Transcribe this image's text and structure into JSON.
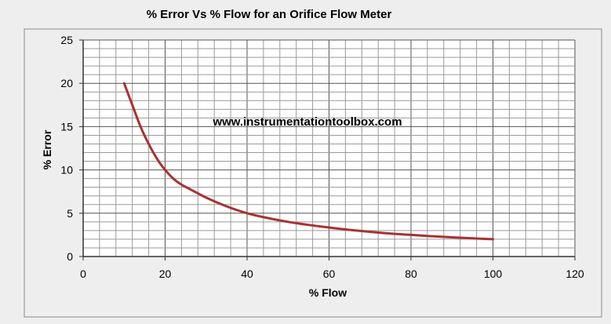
{
  "chart_data": {
    "type": "line",
    "title": "% Error Vs % Flow for an Orifice Flow Meter",
    "xlabel": "% Flow",
    "ylabel": "% Error",
    "watermark": "www.instrumentationtoolbox.com",
    "xlim": [
      0,
      120
    ],
    "ylim": [
      0,
      25
    ],
    "x_major_ticks": [
      0,
      20,
      40,
      60,
      80,
      100,
      120
    ],
    "y_major_ticks": [
      0,
      5,
      10,
      15,
      20,
      25
    ],
    "x_minor_step": 4,
    "y_minor_step": 1,
    "grid": true,
    "series": [
      {
        "color": "#a83232",
        "points": [
          [
            10,
            20.0
          ],
          [
            12,
            17.5
          ],
          [
            14,
            15.0
          ],
          [
            16,
            13.0
          ],
          [
            18,
            11.3
          ],
          [
            20,
            10.0
          ],
          [
            22,
            9.0
          ],
          [
            24,
            8.3
          ],
          [
            26,
            7.8
          ],
          [
            28,
            7.3
          ],
          [
            30,
            6.8
          ],
          [
            35,
            5.8
          ],
          [
            40,
            5.0
          ],
          [
            45,
            4.45
          ],
          [
            50,
            4.0
          ],
          [
            55,
            3.65
          ],
          [
            60,
            3.35
          ],
          [
            65,
            3.08
          ],
          [
            70,
            2.85
          ],
          [
            75,
            2.65
          ],
          [
            80,
            2.5
          ],
          [
            85,
            2.35
          ],
          [
            90,
            2.22
          ],
          [
            95,
            2.1
          ],
          [
            100,
            2.0
          ]
        ]
      }
    ]
  }
}
